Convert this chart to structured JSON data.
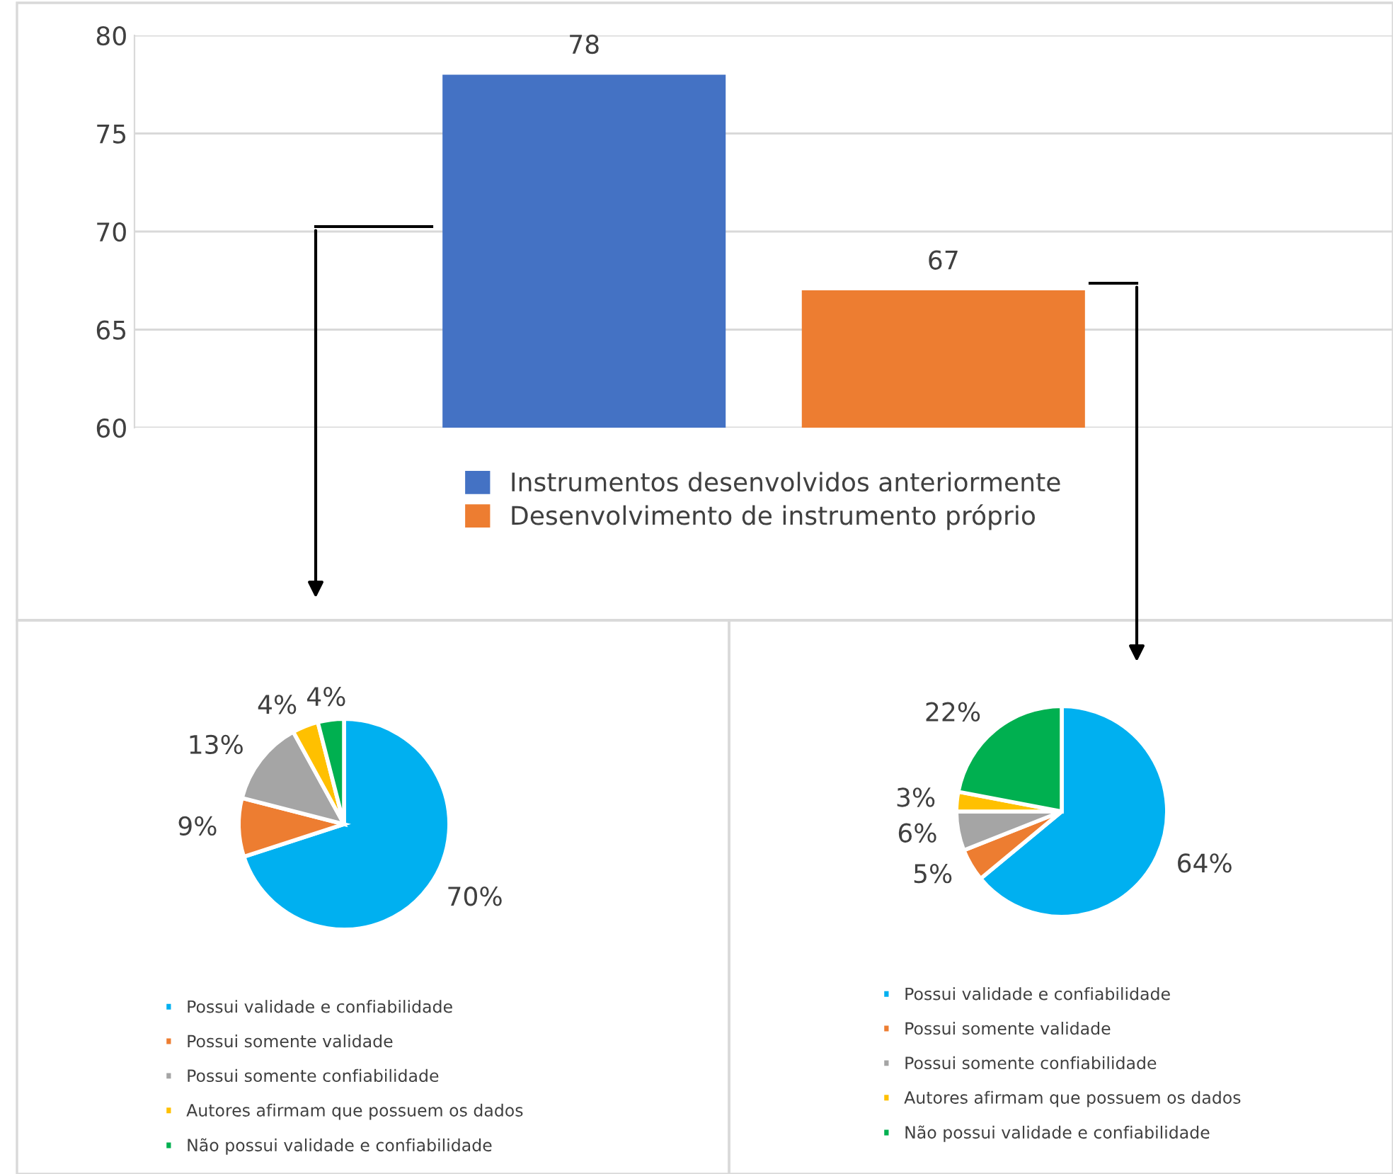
{
  "chart_data": [
    {
      "type": "bar",
      "categories": [
        null
      ],
      "series": [
        {
          "name": "Instrumentos desenvolvidos anteriormente",
          "color": "#4472c4",
          "values": [
            78
          ]
        },
        {
          "name": "Desenvolvimento de instrumento próprio",
          "color": "#ed7d31",
          "values": [
            67
          ]
        }
      ],
      "ylim": [
        60,
        80
      ],
      "yticks": [
        60,
        65,
        70,
        75,
        80
      ],
      "grid": "y",
      "legend": "bottom",
      "data_labels": true,
      "tick_labels": "y"
    },
    {
      "type": "pie",
      "categories": [
        "Possui validade e confiabilidade",
        "Possui somente validade",
        "Possui somente confiabilidade",
        "Autores afirmam que possuem os dados",
        "Não possui validade e confiabilidade"
      ],
      "values": [
        70,
        9,
        13,
        4,
        4
      ],
      "value_labels": [
        "70%",
        "9%",
        "13%",
        "4%",
        "4%"
      ],
      "colors": [
        "#00b0f0",
        "#ed7d31",
        "#a5a5a5",
        "#ffc000",
        "#00b050"
      ],
      "legend": "bottom"
    },
    {
      "type": "pie",
      "categories": [
        "Possui validade e confiabilidade",
        "Possui somente validade",
        "Possui somente confiabilidade",
        "Autores afirmam que possuem os dados",
        "Não possui validade e confiabilidade"
      ],
      "values": [
        64,
        5,
        6,
        3,
        22
      ],
      "value_labels": [
        "64%",
        "5%",
        "6%",
        "3%",
        "22%"
      ],
      "colors": [
        "#00b0f0",
        "#ed7d31",
        "#a5a5a5",
        "#ffc000",
        "#00b050"
      ],
      "legend": "bottom"
    }
  ]
}
